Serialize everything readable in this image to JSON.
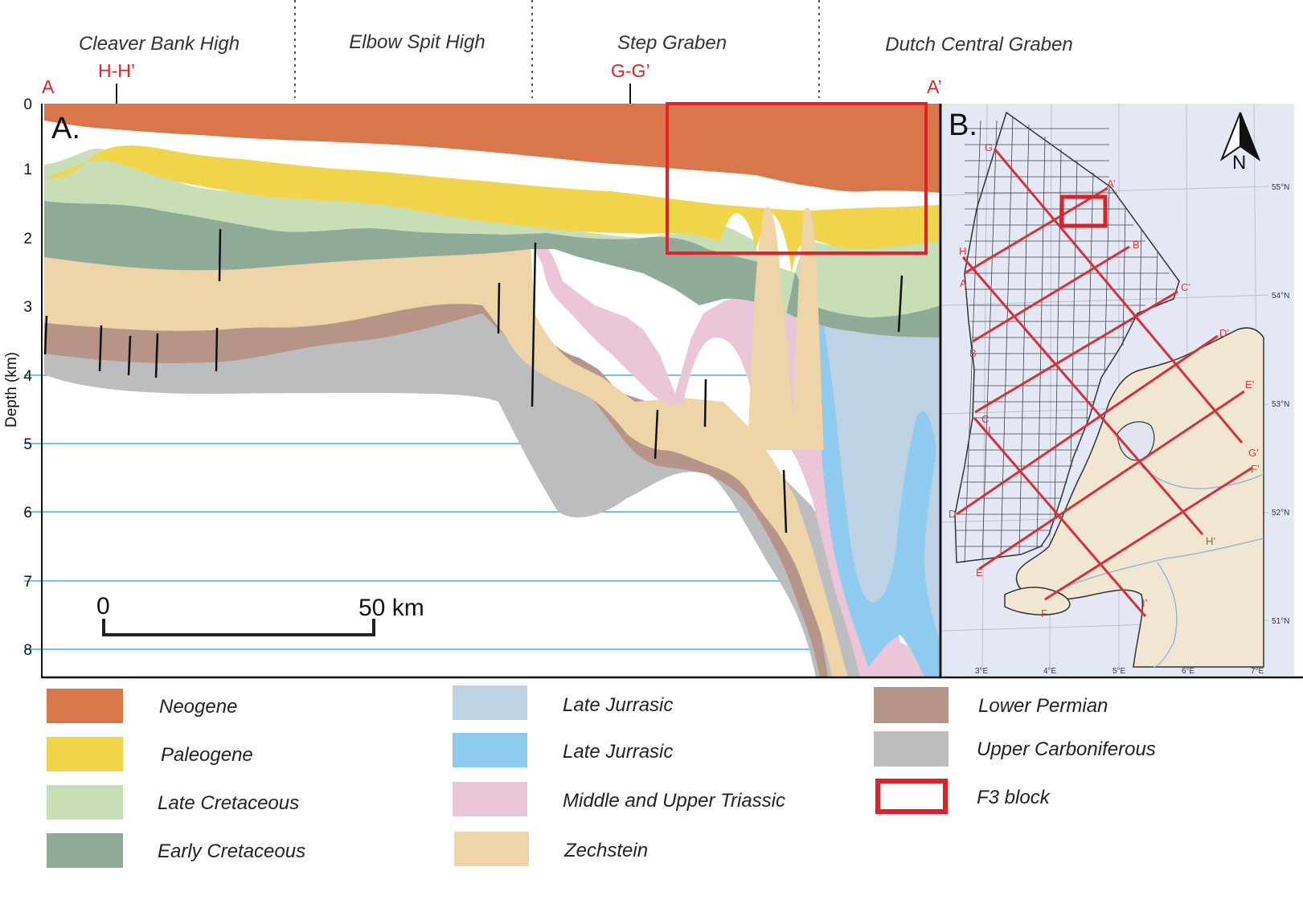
{
  "regions": {
    "cleaver": "Cleaver Bank High",
    "elbow": "Elbow Spit High",
    "step": "Step Graben",
    "dutch": "Dutch Central Graben"
  },
  "section_markers": {
    "start": "A",
    "end": "A’",
    "hh": "H-H’",
    "gg": "G-G’"
  },
  "panel_labels": {
    "a": "A.",
    "b": "B."
  },
  "axis": {
    "ylabel": "Depth (km)",
    "ticks": [
      "0",
      "1",
      "2",
      "3",
      "4",
      "5",
      "6",
      "7",
      "8"
    ]
  },
  "scale_bar": {
    "start": "0",
    "end": "50 km"
  },
  "map": {
    "north": "N",
    "latitudes": [
      "55°N",
      "54°N",
      "53°N",
      "52°N",
      "51°N"
    ],
    "longitudes": [
      "3°E",
      "4°E",
      "5°E",
      "6°E",
      "7°E"
    ],
    "line_labels": {
      "g": "G",
      "a2": "A’",
      "h": "H",
      "b2": "B’",
      "a": "A",
      "c2": "C’",
      "d2": "D’",
      "b": "B",
      "e2": "E’",
      "c": "C",
      "i": "I",
      "g2": "G’",
      "f2": "F’",
      "d": "D",
      "h2": "H’",
      "e": "E",
      "i2": "I’",
      "f": "F"
    }
  },
  "legend": [
    {
      "label": "Neogene",
      "color": "#d9774a"
    },
    {
      "label": "Paleogene",
      "color": "#f0d44a"
    },
    {
      "label": "Late Cretaceous",
      "color": "#c8deb6"
    },
    {
      "label": "Early Cretaceous",
      "color": "#8faa96"
    },
    {
      "label": "Late Jurrasic",
      "color": "#bdd3e5"
    },
    {
      "label": "Late Jurrasic",
      "color": "#8ecbef"
    },
    {
      "label": "Middle and Upper Triassic",
      "color": "#ebc6d9"
    },
    {
      "label": "Zechstein",
      "color": "#edd5a7"
    },
    {
      "label": "Lower Permian",
      "color": "#b69488"
    },
    {
      "label": "Upper Carboniferous",
      "color": "#bcbdbf"
    },
    {
      "label": "F3 block",
      "color": "#e02028"
    }
  ]
}
